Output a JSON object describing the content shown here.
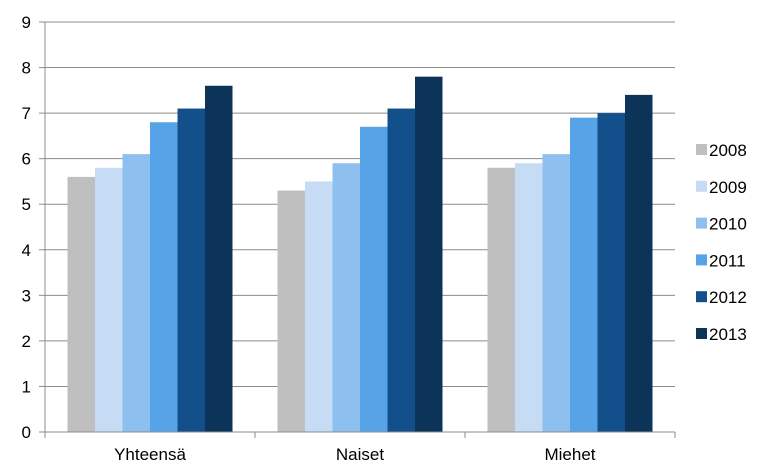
{
  "chart_data": {
    "type": "bar",
    "title": "",
    "xlabel": "",
    "ylabel": "",
    "categories": [
      "Yhteensä",
      "Naiset",
      "Miehet"
    ],
    "ylim": [
      0,
      9
    ],
    "yticks": [
      0,
      1,
      2,
      3,
      4,
      5,
      6,
      7,
      8,
      9
    ],
    "grid": true,
    "legend_position": "right",
    "series": [
      {
        "name": "2008",
        "color": "#bfbfbf",
        "values": [
          5.6,
          5.3,
          5.8
        ]
      },
      {
        "name": "2009",
        "color": "#c6dcf5",
        "values": [
          5.8,
          5.5,
          5.9
        ]
      },
      {
        "name": "2010",
        "color": "#8dc0ef",
        "values": [
          6.1,
          5.9,
          6.1
        ]
      },
      {
        "name": "2011",
        "color": "#57a3e8",
        "values": [
          6.8,
          6.7,
          6.9
        ]
      },
      {
        "name": "2012",
        "color": "#134f8a",
        "values": [
          7.1,
          7.1,
          7.0
        ]
      },
      {
        "name": "2013",
        "color": "#0c3358",
        "values": [
          7.6,
          7.8,
          7.4
        ]
      }
    ]
  }
}
